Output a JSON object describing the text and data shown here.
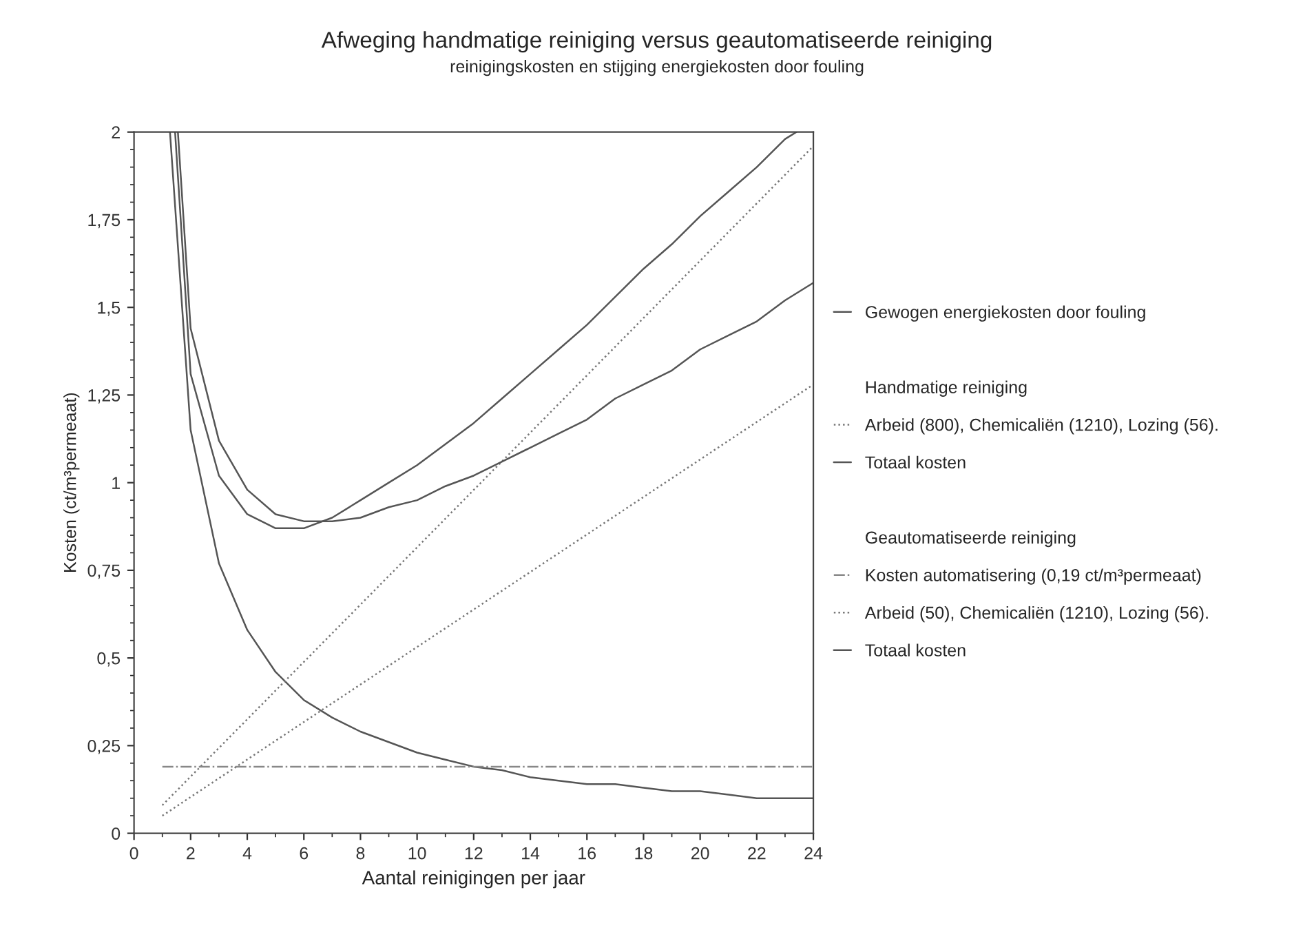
{
  "chart_data": {
    "type": "line",
    "title": "Afweging handmatige reiniging versus geautomatiseerde reiniging",
    "subtitle": "reinigingskosten en stijging energiekosten door fouling",
    "xlabel": "Aantal reinigingen per jaar",
    "ylabel": "Kosten (ct/m³permeaat)",
    "annotations": [
      "Handmatige reiniging",
      "Geautomatiseerde reiniging"
    ],
    "xlim": [
      0,
      24
    ],
    "xticks": [
      0,
      2,
      4,
      6,
      8,
      10,
      12,
      14,
      16,
      18,
      20,
      22,
      24
    ],
    "ylim": [
      0,
      2
    ],
    "yticks": [
      {
        "value": 0,
        "label": "0"
      },
      {
        "value": 0.25,
        "label": "0,25"
      },
      {
        "value": 0.5,
        "label": "0,5"
      },
      {
        "value": 0.75,
        "label": "0,75"
      },
      {
        "value": 1,
        "label": "1"
      },
      {
        "value": 1.25,
        "label": "1,25"
      },
      {
        "value": 1.5,
        "label": "1,5"
      },
      {
        "value": 1.75,
        "label": "1,75"
      },
      {
        "value": 2,
        "label": "2"
      }
    ],
    "grid": false,
    "legend": "right",
    "marker": "none",
    "series": [
      {
        "name": "Gewogen energiekosten door fouling",
        "color": "#555555",
        "line_style": "solid",
        "x": [
          1.27,
          2,
          3,
          4,
          5,
          6,
          7,
          8,
          9,
          10,
          11,
          12,
          13,
          14,
          15,
          16,
          17,
          18,
          19,
          20,
          21,
          22,
          23,
          24
        ],
        "values": [
          2,
          1.15,
          0.77,
          0.58,
          0.46,
          0.38,
          0.33,
          0.29,
          0.26,
          0.23,
          0.21,
          0.19,
          0.18,
          0.16,
          0.15,
          0.14,
          0.14,
          0.13,
          0.12,
          0.12,
          0.11,
          0.1,
          0.1,
          0.1
        ]
      },
      {
        "name": "Arbeid (800), Chemicaliën (1210), Lozing (56).",
        "color": "#777777",
        "line_style": "dotted",
        "x": [
          1,
          24
        ],
        "values": [
          0.08,
          1.96
        ]
      },
      {
        "name": "Totaal kosten",
        "color": "#555555",
        "line_style": "solid",
        "x": [
          1.45,
          2,
          3,
          4,
          5,
          6,
          7,
          8,
          9,
          10,
          11,
          12,
          13,
          14,
          15,
          16,
          17,
          18,
          19,
          20,
          21,
          22,
          23,
          23.4
        ],
        "values": [
          2,
          1.31,
          1.02,
          0.91,
          0.87,
          0.87,
          0.9,
          0.95,
          1.0,
          1.05,
          1.11,
          1.17,
          1.24,
          1.31,
          1.38,
          1.45,
          1.53,
          1.61,
          1.68,
          1.76,
          1.83,
          1.9,
          1.98,
          2
        ]
      },
      {
        "name": "Kosten automatisering (0,19 ct/m³permeaat)",
        "color": "#888888",
        "line_style": "dashdot",
        "x": [
          1,
          24
        ],
        "values": [
          0.19,
          0.19
        ]
      },
      {
        "name": "Arbeid (50), Chemicaliën (1210), Lozing (56).",
        "color": "#777777",
        "line_style": "dotted",
        "x": [
          1,
          24
        ],
        "values": [
          0.05,
          1.28
        ]
      },
      {
        "name": "Totaal kosten",
        "color": "#555555",
        "line_style": "solid",
        "x": [
          1.55,
          2,
          3,
          4,
          5,
          6,
          7,
          8,
          9,
          10,
          11,
          12,
          13,
          14,
          15,
          16,
          17,
          18,
          19,
          20,
          21,
          22,
          23,
          24
        ],
        "values": [
          2,
          1.44,
          1.12,
          0.98,
          0.91,
          0.89,
          0.89,
          0.9,
          0.93,
          0.95,
          0.99,
          1.02,
          1.06,
          1.1,
          1.14,
          1.18,
          1.24,
          1.28,
          1.32,
          1.38,
          1.42,
          1.46,
          1.52,
          1.57
        ]
      }
    ]
  }
}
